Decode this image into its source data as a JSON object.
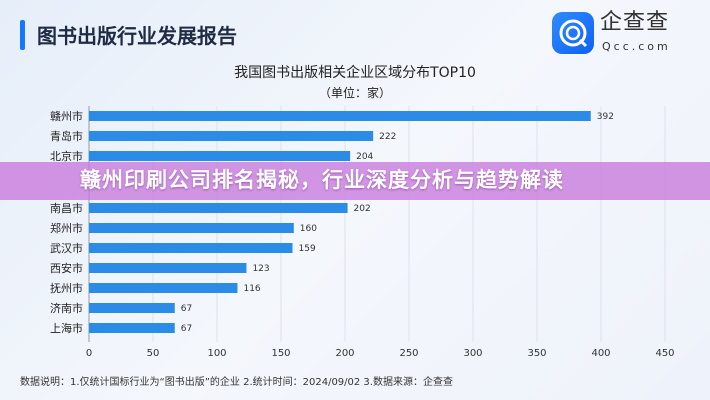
{
  "header": {
    "title": "图书出版行业发展报告",
    "logo_text": "企查查",
    "logo_sub": "Qcc.com"
  },
  "banner": {
    "text": "赣州印刷公司排名揭秘，行业深度分析与趋势解读"
  },
  "footnote": "数据说明：1.仅统计国标行业为“图书出版”的企业  2.统计时间：2024/09/02   3.数据来源：企查查",
  "chart_data": {
    "type": "bar",
    "orientation": "horizontal",
    "title": "我国图书出版相关企业区域分布TOP10",
    "subtitle": "（单位：家）",
    "categories": [
      "赣州市",
      "青岛市",
      "北京市",
      "南昌市",
      "郑州市",
      "武汉市",
      "西安市",
      "抚州市",
      "济南市",
      "上海市"
    ],
    "values": [
      392,
      222,
      204,
      202,
      160,
      159,
      123,
      116,
      67,
      67
    ],
    "xlim": [
      0,
      450
    ],
    "xticks": [
      0,
      50,
      100,
      150,
      200,
      250,
      300,
      350,
      400,
      450
    ],
    "grid": true,
    "bar_color": "#2a8ce6"
  }
}
